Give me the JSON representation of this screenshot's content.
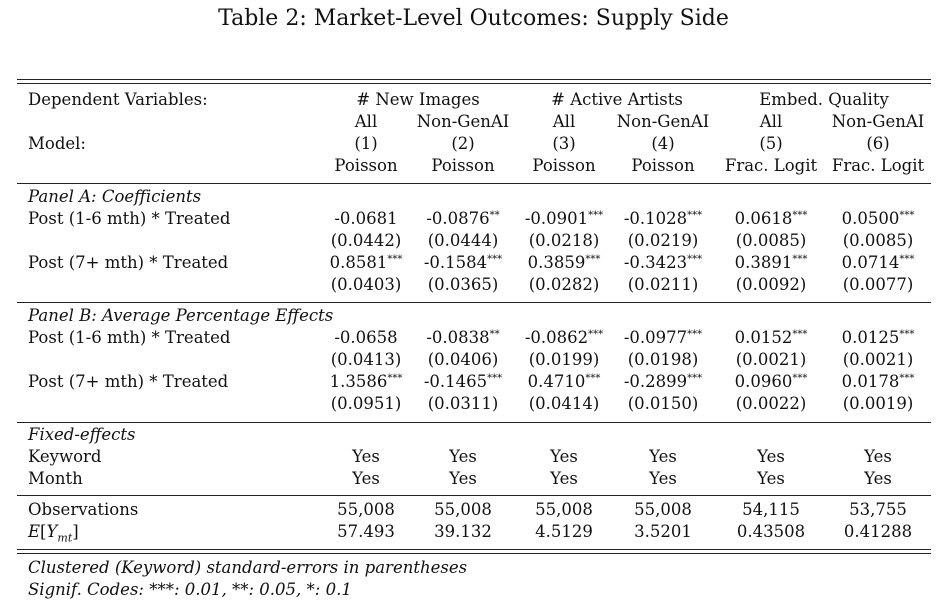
{
  "caption": "Table 2: Market-Level Outcomes: Supply Side",
  "header": {
    "dep_label": "Dependent Variables:",
    "model_label": "Model:",
    "groups": [
      "# New Images",
      "# Active Artists",
      "Embed. Quality"
    ],
    "subgroups": [
      "All",
      "Non-GenAI",
      "All",
      "Non-GenAI",
      "All",
      "Non-GenAI"
    ],
    "model_numbers": [
      "(1)",
      "(2)",
      "(3)",
      "(4)",
      "(5)",
      "(6)"
    ],
    "estimators": [
      "Poisson",
      "Poisson",
      "Poisson",
      "Poisson",
      "Frac. Logit",
      "Frac. Logit"
    ]
  },
  "panel_a": {
    "title": "Panel A: Coefficients",
    "rows": [
      {
        "label": "Post (1-6 mth) * Treated",
        "coef": [
          "-0.0681",
          "-0.0876",
          "-0.0901",
          "-0.1028",
          "0.0618",
          "0.0500"
        ],
        "stars": [
          "",
          "**",
          "***",
          "***",
          "***",
          "***"
        ],
        "se": [
          "(0.0442)",
          "(0.0444)",
          "(0.0218)",
          "(0.0219)",
          "(0.0085)",
          "(0.0085)"
        ]
      },
      {
        "label": "Post (7+ mth) * Treated",
        "coef": [
          "0.8581",
          "-0.1584",
          "0.3859",
          "-0.3423",
          "0.3891",
          "0.0714"
        ],
        "stars": [
          "***",
          "***",
          "***",
          "***",
          "***",
          "***"
        ],
        "se": [
          "(0.0403)",
          "(0.0365)",
          "(0.0282)",
          "(0.0211)",
          "(0.0092)",
          "(0.0077)"
        ]
      }
    ]
  },
  "panel_b": {
    "title": "Panel B: Average Percentage Effects",
    "rows": [
      {
        "label": "Post (1-6 mth) * Treated",
        "coef": [
          "-0.0658",
          "-0.0838",
          "-0.0862",
          "-0.0977",
          "0.0152",
          "0.0125"
        ],
        "stars": [
          "",
          "**",
          "***",
          "***",
          "***",
          "***"
        ],
        "se": [
          "(0.0413)",
          "(0.0406)",
          "(0.0199)",
          "(0.0198)",
          "(0.0021)",
          "(0.0021)"
        ]
      },
      {
        "label": "Post (7+ mth) * Treated",
        "coef": [
          "1.3586",
          "-0.1465",
          "0.4710",
          "-0.2899",
          "0.0960",
          "0.0178"
        ],
        "stars": [
          "***",
          "***",
          "***",
          "***",
          "***",
          "***"
        ],
        "se": [
          "(0.0951)",
          "(0.0311)",
          "(0.0414)",
          "(0.0150)",
          "(0.0022)",
          "(0.0019)"
        ]
      }
    ]
  },
  "fixed_effects": {
    "title": "Fixed-effects",
    "rows": [
      {
        "label": "Keyword",
        "values": [
          "Yes",
          "Yes",
          "Yes",
          "Yes",
          "Yes",
          "Yes"
        ]
      },
      {
        "label": "Month",
        "values": [
          "Yes",
          "Yes",
          "Yes",
          "Yes",
          "Yes",
          "Yes"
        ]
      }
    ]
  },
  "stats": {
    "rows": [
      {
        "label": "Observations",
        "values": [
          "55,008",
          "55,008",
          "55,008",
          "55,008",
          "54,115",
          "53,755"
        ]
      },
      {
        "label": "E[Y_mt]",
        "values": [
          "57.493",
          "39.132",
          "4.5129",
          "3.5201",
          "0.43508",
          "0.41288"
        ]
      }
    ]
  },
  "notes": [
    "Clustered (Keyword) standard-errors in parentheses",
    "Signif. Codes: ***: 0.01, **: 0.05, *: 0.1"
  ]
}
